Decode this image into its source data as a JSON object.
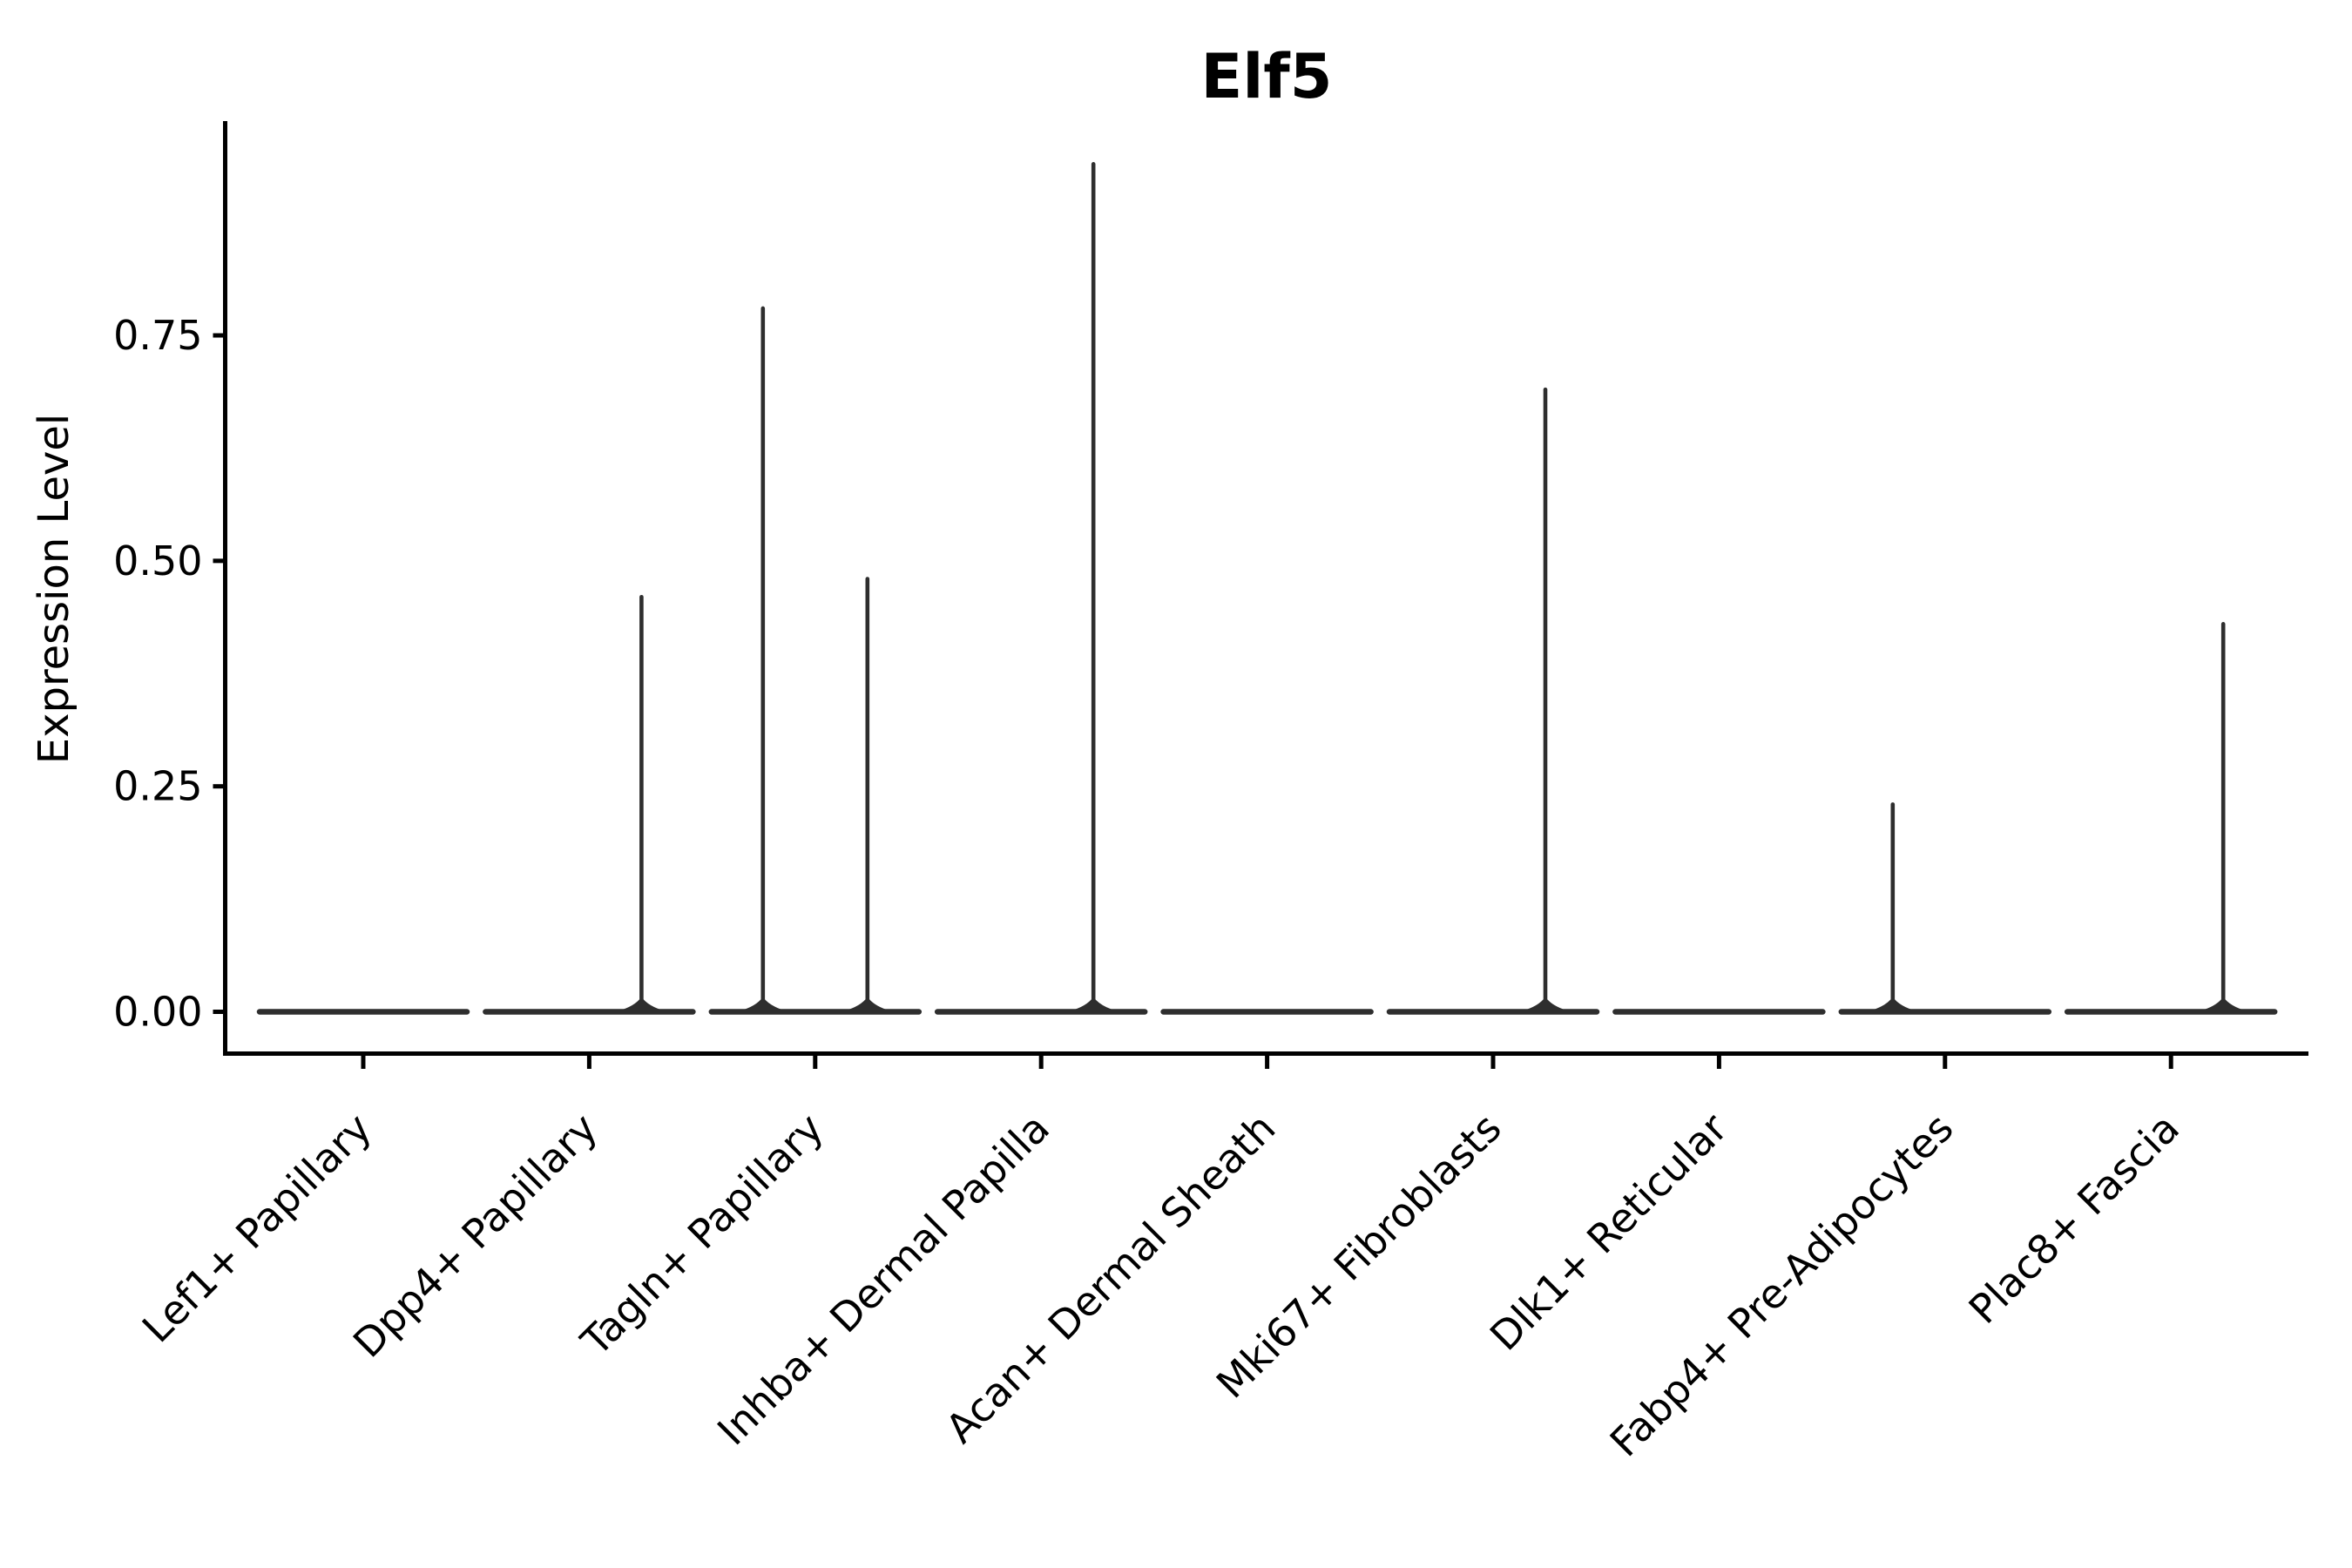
{
  "title": "Elf5",
  "y_axis": {
    "label": "Expression Level",
    "tick_labels": [
      "0.00",
      "0.25",
      "0.50",
      "0.75"
    ]
  },
  "x_axis": {
    "tick_labels": [
      "Lef1+ Papillary",
      "Dpp4+ Papillary",
      "Tagln+ Papillary",
      "Inhba+ Dermal Papilla",
      "Acan+ Dermal Sheath",
      "Mki67+ Fibroblasts",
      "Dlk1+ Reticular",
      "Fabp4+ Pre-Adipocytes",
      "Plac8+ Fascia"
    ]
  },
  "chart_data": {
    "type": "violin",
    "title": "Elf5",
    "xlabel": "",
    "ylabel": "Expression Level",
    "ylim": [
      0,
      0.99
    ],
    "yticks": [
      0,
      0.25,
      0.5,
      0.75
    ],
    "ytick_labels": [
      "0.00",
      "0.25",
      "0.50",
      "0.75"
    ],
    "categories": [
      "Lef1+ Papillary",
      "Dpp4+ Papillary",
      "Tagln+ Papillary",
      "Inhba+ Dermal Papilla",
      "Acan+ Dermal Sheath",
      "Mki67+ Fibroblasts",
      "Dlk1+ Reticular",
      "Fabp4+ Pre-Adipocytes",
      "Plac8+ Fascia"
    ],
    "series": [
      {
        "position": "left",
        "max_expression": [
          0,
          0,
          0.78,
          0,
          0,
          0,
          0,
          0.23,
          0
        ]
      },
      {
        "position": "right",
        "max_expression": [
          0,
          0.46,
          0.48,
          0.94,
          0,
          0.69,
          0,
          0,
          0.43
        ]
      }
    ],
    "layout": {
      "grid": false,
      "legend": false,
      "x_label_rotation_deg": 45
    }
  },
  "colors": {
    "violin": "#2e2e2e",
    "axis": "#000000",
    "text": "#000000",
    "background": "#ffffff"
  }
}
